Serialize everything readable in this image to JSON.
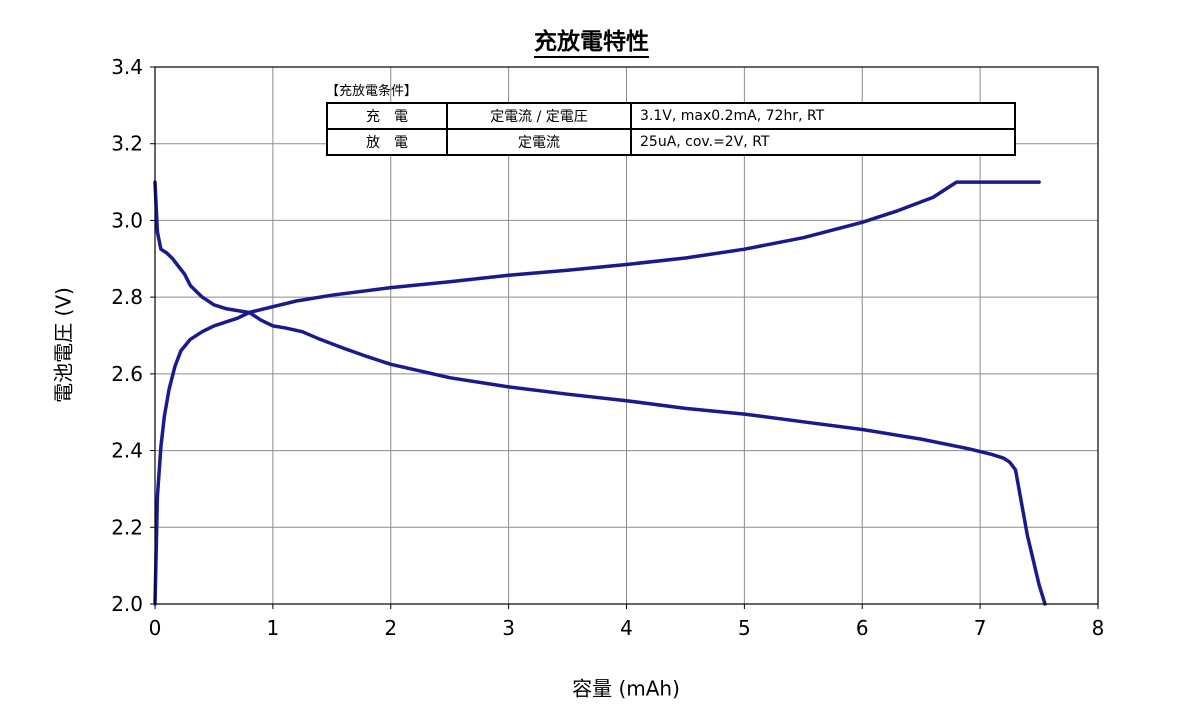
{
  "chart_data": {
    "type": "line",
    "title": "充放電特性",
    "xlabel": "容量 (mAh)",
    "ylabel": "電池電圧 (V)",
    "xlim": [
      0,
      8
    ],
    "ylim": [
      2.0,
      3.4
    ],
    "xticks": [
      "0",
      "1",
      "2",
      "3",
      "4",
      "5",
      "6",
      "7",
      "8"
    ],
    "yticks": [
      "2.0",
      "2.2",
      "2.4",
      "2.6",
      "2.8",
      "3.0",
      "3.2",
      "3.4"
    ],
    "grid": true,
    "line_color": "#1a1a8c",
    "series": [
      {
        "x": [
          0.0,
          0.02,
          0.05,
          0.08,
          0.12,
          0.17,
          0.22,
          0.3,
          0.4,
          0.5,
          0.6,
          0.7,
          0.8,
          1.0,
          1.2,
          1.5,
          2.0,
          2.5,
          3.0,
          3.5,
          4.0,
          4.5,
          5.0,
          5.5,
          6.0,
          6.3,
          6.6,
          6.8,
          7.0,
          7.2,
          7.5
        ],
        "y": [
          2.0,
          2.28,
          2.41,
          2.49,
          2.56,
          2.62,
          2.66,
          2.69,
          2.71,
          2.725,
          2.735,
          2.745,
          2.76,
          2.775,
          2.79,
          2.805,
          2.825,
          2.84,
          2.857,
          2.87,
          2.885,
          2.902,
          2.925,
          2.955,
          2.995,
          3.025,
          3.06,
          3.1,
          3.1,
          3.1,
          3.1
        ]
      },
      {
        "x": [
          0.0,
          0.02,
          0.05,
          0.1,
          0.15,
          0.2,
          0.25,
          0.3,
          0.4,
          0.5,
          0.6,
          0.7,
          0.8,
          0.9,
          1.0,
          1.1,
          1.25,
          1.4,
          1.6,
          1.8,
          2.0,
          2.5,
          3.0,
          3.5,
          4.0,
          4.5,
          5.0,
          5.5,
          6.0,
          6.5,
          6.9,
          7.1,
          7.2,
          7.25,
          7.3,
          7.4,
          7.5,
          7.55
        ],
        "y": [
          3.1,
          2.97,
          2.925,
          2.915,
          2.9,
          2.88,
          2.86,
          2.83,
          2.8,
          2.78,
          2.77,
          2.765,
          2.76,
          2.74,
          2.725,
          2.72,
          2.71,
          2.69,
          2.667,
          2.645,
          2.625,
          2.59,
          2.566,
          2.547,
          2.53,
          2.51,
          2.495,
          2.475,
          2.455,
          2.43,
          2.405,
          2.39,
          2.38,
          2.37,
          2.35,
          2.18,
          2.05,
          2.0
        ]
      }
    ]
  },
  "conditions": {
    "title": "【充放電条件】",
    "rows": [
      {
        "mode": "充　電",
        "method": "定電流 / 定電圧",
        "detail": "3.1V,  max0.2mA,  72hr,   RT"
      },
      {
        "mode": "放　電",
        "method": "定電流",
        "detail": "25uA,  cov.=2V,   RT"
      }
    ]
  }
}
